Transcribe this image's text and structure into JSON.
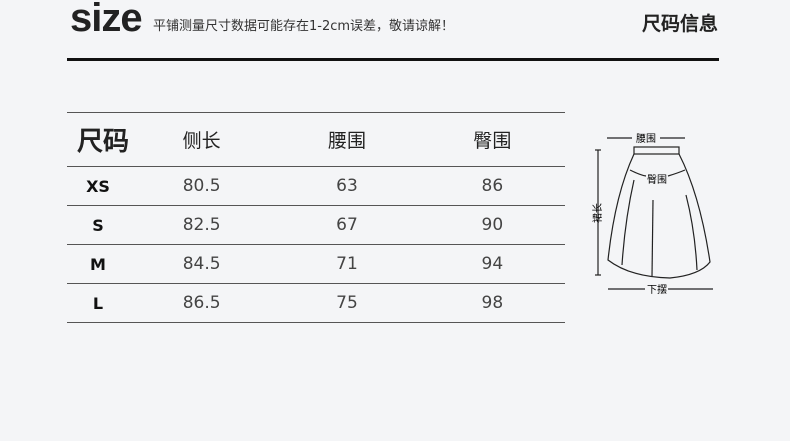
{
  "header": {
    "logo": "size",
    "note": "平铺测量尺寸数据可能存在1-2cm误差，敬请谅解！",
    "title": "尺码信息"
  },
  "table": {
    "headers": [
      "尺码",
      "侧长",
      "腰围",
      "臀围"
    ],
    "rows": [
      [
        "XS",
        "80.5",
        "63",
        "86"
      ],
      [
        "S",
        "82.5",
        "67",
        "90"
      ],
      [
        "M",
        "84.5",
        "71",
        "94"
      ],
      [
        "L",
        "86.5",
        "75",
        "98"
      ]
    ]
  },
  "diagram": {
    "waist": "腰围",
    "hip": "臀围",
    "length": "裙长",
    "hem": "下摆"
  }
}
